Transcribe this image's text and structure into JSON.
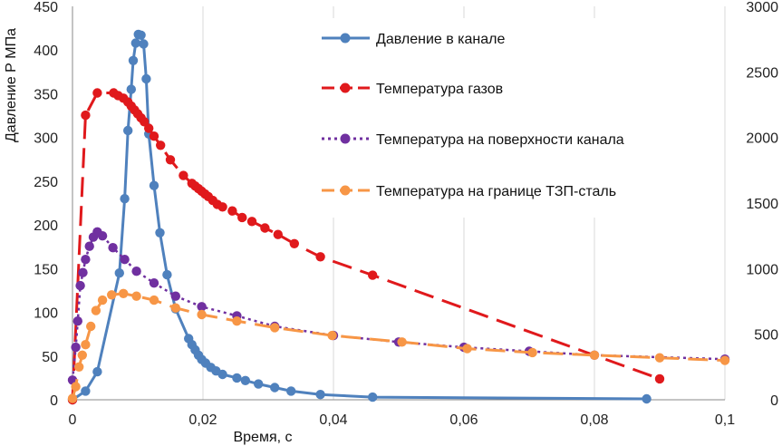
{
  "chart_data": {
    "type": "line",
    "title": "",
    "xlabel": "Время, с",
    "ylabel": "Давление Р МПа",
    "y2label": "",
    "xlim": [
      0,
      0.1
    ],
    "ylim": [
      0,
      450
    ],
    "y2lim": [
      0,
      3000
    ],
    "xticks": [
      0,
      0.02,
      0.04,
      0.06,
      0.08,
      0.1
    ],
    "xtick_labels": [
      "0",
      "0,02",
      "0,04",
      "0,06",
      "0,08",
      "0,1"
    ],
    "yticks": [
      0,
      50,
      100,
      150,
      200,
      250,
      300,
      350,
      400,
      450
    ],
    "y2ticks": [
      0,
      500,
      1000,
      1500,
      2000,
      2500,
      3000
    ],
    "grid": "vertical",
    "legend_position": "top-right",
    "series": [
      {
        "name": "Давление в канале",
        "axis": "left",
        "color": "#4f81bd",
        "line_style": "solid",
        "x": [
          0,
          0.002,
          0.0038,
          0.0072,
          0.008,
          0.0085,
          0.009,
          0.0093,
          0.0097,
          0.0101,
          0.0105,
          0.0109,
          0.0113,
          0.0117,
          0.0125,
          0.0134,
          0.0145,
          0.0158,
          0.0178,
          0.0183,
          0.0188,
          0.0193,
          0.0198,
          0.0204,
          0.0212,
          0.022,
          0.023,
          0.0252,
          0.0265,
          0.0285,
          0.031,
          0.0335,
          0.038,
          0.046,
          0.088
        ],
        "y": [
          0,
          10,
          32,
          145,
          230,
          308,
          355,
          388,
          408,
          418,
          417,
          407,
          367,
          304,
          245,
          191,
          143,
          104,
          70,
          63,
          57,
          51,
          46,
          42,
          37,
          33,
          29,
          25,
          22,
          18,
          14,
          10,
          6,
          3,
          1
        ]
      },
      {
        "name": "Температура газов",
        "axis": "right",
        "color": "#e0191c",
        "line_style": "dashed",
        "x": [
          0,
          0.002,
          0.0038,
          0.0063,
          0.007,
          0.0078,
          0.0085,
          0.009,
          0.0095,
          0.01,
          0.0105,
          0.011,
          0.0117,
          0.0125,
          0.0135,
          0.015,
          0.017,
          0.0183,
          0.0188,
          0.0193,
          0.0198,
          0.0203,
          0.0208,
          0.0215,
          0.0222,
          0.023,
          0.0245,
          0.026,
          0.0275,
          0.0295,
          0.0315,
          0.034,
          0.038,
          0.046,
          0.09
        ],
        "y": [
          0,
          2170,
          2340,
          2340,
          2320,
          2300,
          2270,
          2240,
          2210,
          2180,
          2150,
          2120,
          2070,
          2010,
          1940,
          1830,
          1710,
          1650,
          1630,
          1610,
          1590,
          1570,
          1550,
          1520,
          1490,
          1470,
          1440,
          1390,
          1360,
          1310,
          1260,
          1190,
          1090,
          950,
          160
        ]
      },
      {
        "name": "Температура на поверхности канала",
        "axis": "right",
        "color": "#7030a0",
        "line_style": "dotted",
        "x": [
          0,
          0.0005,
          0.0008,
          0.0012,
          0.0016,
          0.002,
          0.0026,
          0.0032,
          0.0038,
          0.0046,
          0.0062,
          0.008,
          0.0098,
          0.0125,
          0.0158,
          0.0198,
          0.0252,
          0.031,
          0.04,
          0.05,
          0.06,
          0.07,
          0.08,
          0.1
        ],
        "y": [
          150,
          400,
          600,
          870,
          970,
          1070,
          1170,
          1240,
          1280,
          1250,
          1160,
          1070,
          980,
          890,
          790,
          710,
          640,
          560,
          490,
          440,
          400,
          370,
          340,
          310
        ]
      },
      {
        "name": "Температура на границе ТЗП-сталь",
        "axis": "right",
        "color": "#f79646",
        "line_style": "dashed",
        "x": [
          0,
          0.0005,
          0.001,
          0.0015,
          0.002,
          0.0028,
          0.0036,
          0.0046,
          0.006,
          0.0078,
          0.0098,
          0.0125,
          0.0158,
          0.0198,
          0.0252,
          0.031,
          0.0398,
          0.0505,
          0.0605,
          0.0705,
          0.08,
          0.09,
          0.1
        ],
        "y": [
          10,
          100,
          250,
          340,
          420,
          560,
          680,
          760,
          800,
          810,
          790,
          760,
          700,
          650,
          600,
          550,
          490,
          440,
          390,
          360,
          340,
          320,
          300
        ]
      }
    ]
  }
}
